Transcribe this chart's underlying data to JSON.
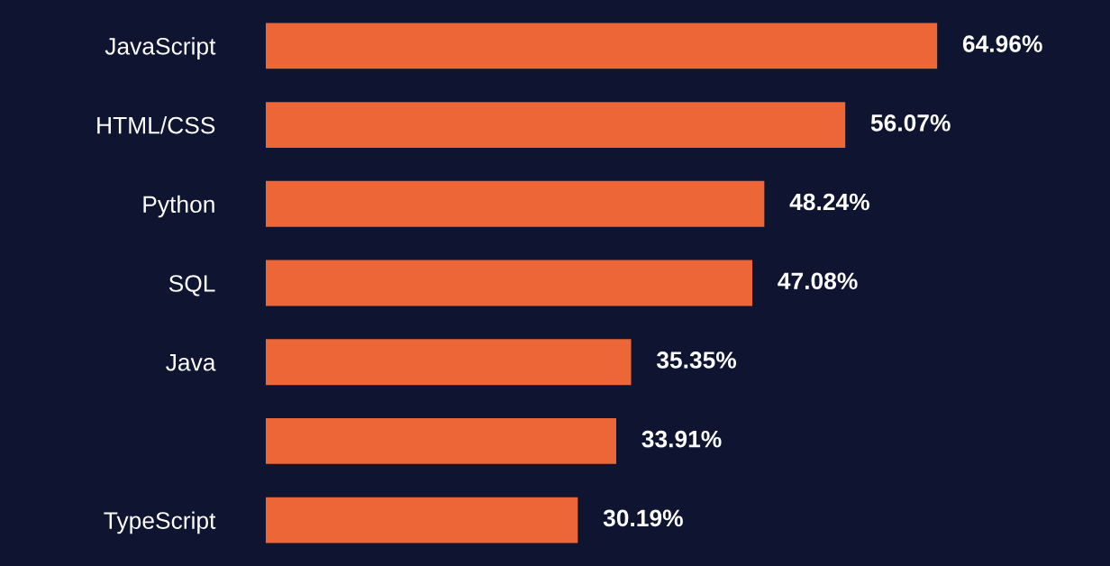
{
  "chart_data": {
    "type": "bar",
    "orientation": "horizontal",
    "categories": [
      "JavaScript",
      "HTML/CSS",
      "Python",
      "SQL",
      "Java",
      null,
      "TypeScript"
    ],
    "values": [
      64.96,
      56.07,
      48.24,
      47.08,
      35.35,
      33.91,
      30.19
    ],
    "value_labels": [
      "64.96%",
      "56.07%",
      "48.24%",
      "47.08%",
      "35.35%",
      "33.91%",
      "30.19%"
    ],
    "color": "#ec6637",
    "grid": false,
    "legend": false
  }
}
